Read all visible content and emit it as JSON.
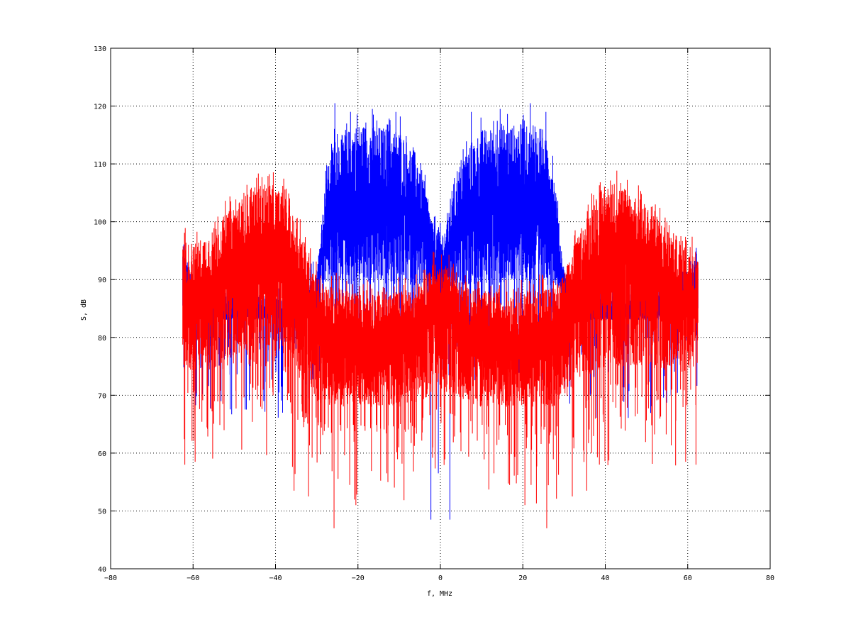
{
  "chart_data": {
    "type": "line",
    "title": "",
    "xlabel": "f, MHz",
    "ylabel": "S, dB",
    "xlim": [
      -80,
      80
    ],
    "ylim": [
      40,
      130
    ],
    "xticks": [
      -80,
      -60,
      -40,
      -20,
      0,
      20,
      40,
      60,
      80
    ],
    "yticks": [
      40,
      50,
      60,
      70,
      80,
      90,
      100,
      110,
      120,
      130
    ],
    "x_tick_labels": [
      "−80",
      "−60",
      "−40",
      "−20",
      "0",
      "20",
      "40",
      "60",
      "80"
    ],
    "y_tick_labels": [
      "40",
      "50",
      "60",
      "70",
      "80",
      "90",
      "100",
      "110",
      "120",
      "130"
    ],
    "grid": true,
    "legend": "none",
    "series": [
      {
        "color": "#0000ff",
        "description_of_shape": "two noisy spectral bands",
        "x_range": [
          -62.5,
          62.5
        ],
        "envelope": {
          "x": [
            -62.5,
            -60,
            -50,
            -40,
            -35,
            -30,
            -29,
            -28,
            -26,
            -20,
            -10,
            -5,
            -2,
            0,
            2,
            5,
            10,
            20,
            26,
            28,
            29,
            30,
            35,
            40,
            50,
            60,
            62.5
          ],
          "upper": [
            96,
            90,
            88,
            87,
            86,
            92,
            98,
            106,
            114,
            117,
            116,
            111,
            100,
            98,
            100,
            111,
            116,
            117,
            114,
            106,
            98,
            92,
            86,
            87,
            88,
            90,
            96
          ],
          "center": [
            87,
            85,
            84,
            84,
            84,
            87,
            92,
            99,
            103,
            104,
            103,
            100,
            94,
            90,
            94,
            100,
            103,
            104,
            103,
            99,
            92,
            87,
            84,
            84,
            84,
            85,
            87
          ],
          "lower": [
            84,
            83,
            83,
            83,
            83,
            84,
            88,
            89,
            89,
            89,
            89,
            89,
            88,
            86,
            88,
            89,
            89,
            89,
            89,
            89,
            88,
            84,
            83,
            83,
            83,
            83,
            84
          ]
        },
        "spikes_max": [
          {
            "x": -25.6,
            "y": 120.5
          },
          {
            "x": -21.8,
            "y": 119
          },
          {
            "x": -16.5,
            "y": 119.5
          },
          {
            "x": -10.8,
            "y": 119
          },
          {
            "x": 7.5,
            "y": 119
          },
          {
            "x": 14.5,
            "y": 119.5
          },
          {
            "x": 21.8,
            "y": 120.5
          },
          {
            "x": 25.6,
            "y": 119
          }
        ],
        "spikes_min": [
          {
            "x": -2.3,
            "y": 48.5
          },
          {
            "x": 2.3,
            "y": 48.5
          },
          {
            "x": -0.5,
            "y": 56.5
          }
        ]
      },
      {
        "color": "#ff0000",
        "description_of_shape": "wideband noisy spectrum",
        "x_range": [
          -62.5,
          62.5
        ],
        "envelope": {
          "x": [
            -62.5,
            -60,
            -55,
            -50,
            -45,
            -42,
            -38,
            -35,
            -32,
            -30,
            -28,
            -20,
            -10,
            -5,
            -2,
            0,
            2,
            5,
            10,
            20,
            28,
            30,
            32,
            35,
            38,
            42,
            45,
            50,
            55,
            60,
            62.5
          ],
          "upper": [
            97,
            96,
            99,
            103,
            106,
            107,
            105,
            100,
            95,
            91,
            89,
            88,
            88,
            89,
            93,
            92,
            93,
            89,
            88,
            88,
            89,
            91,
            95,
            100,
            105,
            107,
            106,
            103,
            99,
            96,
            97
          ],
          "center": [
            86,
            86,
            89,
            93,
            95,
            95,
            93,
            90,
            86,
            83,
            80,
            79,
            80,
            82,
            86,
            87,
            86,
            82,
            80,
            79,
            80,
            83,
            86,
            90,
            93,
            95,
            95,
            93,
            89,
            86,
            86
          ],
          "lower": [
            75,
            74,
            74,
            75,
            75,
            75,
            74,
            73,
            71,
            69,
            68,
            68,
            68,
            69,
            70,
            71,
            70,
            69,
            68,
            68,
            68,
            69,
            71,
            73,
            74,
            75,
            75,
            75,
            74,
            74,
            75
          ]
        },
        "spikes_min": [
          {
            "x": -62,
            "y": 58
          },
          {
            "x": -59.5,
            "y": 58.5
          },
          {
            "x": -35.5,
            "y": 53.5
          },
          {
            "x": -32,
            "y": 52.5
          },
          {
            "x": -25.8,
            "y": 47
          },
          {
            "x": -22,
            "y": 54.5
          },
          {
            "x": -20.5,
            "y": 51
          },
          {
            "x": -13,
            "y": 56.5
          },
          {
            "x": 13,
            "y": 56.5
          },
          {
            "x": 20.5,
            "y": 51
          },
          {
            "x": 22,
            "y": 54.5
          },
          {
            "x": 25.8,
            "y": 47
          },
          {
            "x": 32,
            "y": 52.5
          },
          {
            "x": 35.5,
            "y": 53.5
          },
          {
            "x": 59.5,
            "y": 58.5
          },
          {
            "x": 62,
            "y": 58
          }
        ]
      }
    ]
  }
}
